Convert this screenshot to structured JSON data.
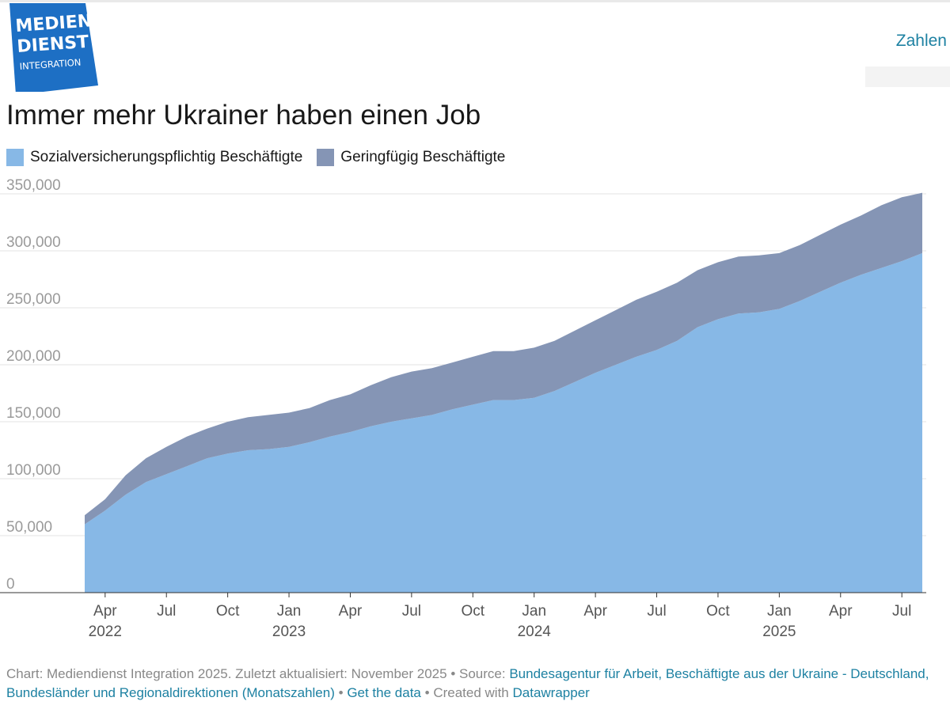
{
  "logo": {
    "line1": "MEDIEN",
    "line2": "DIENST",
    "line3": "INTEGRATION",
    "color": "#1d6fc4"
  },
  "tab": {
    "label": "Zahlen"
  },
  "header": {
    "title": "Immer mehr Ukrainer haben einen Job"
  },
  "legend": {
    "items": [
      {
        "label": "Sozialversicherungspflichtig Beschäftigte",
        "color": "#87b8e6"
      },
      {
        "label": "Geringfügig Beschäftigte",
        "color": "#8595b5"
      }
    ]
  },
  "footer": {
    "credit": "Chart: Mediendienst Integration 2025. Zuletzt aktualisiert: November 2025",
    "source_prefix": "• Source:",
    "source_link": "Bundesagentur für Arbeit, Beschäftigte aus der Ukraine - Deutschland, Bundesländer und Regionaldirektionen (Monatszahlen)",
    "sep1": "•",
    "get_data": "Get the data",
    "sep2": "•",
    "created_with": "Created with",
    "datawrapper": "Datawrapper"
  },
  "chart_data": {
    "type": "area",
    "stacked": true,
    "ylim": [
      0,
      350000
    ],
    "yticks": [
      0,
      50000,
      100000,
      150000,
      200000,
      250000,
      300000,
      350000
    ],
    "ytick_labels": [
      "0",
      "50,000",
      "100,000",
      "150,000",
      "200,000",
      "250,000",
      "300,000",
      "350,000"
    ],
    "xticks": [
      {
        "month": "2022-04",
        "label": "Apr",
        "year": "2022"
      },
      {
        "month": "2022-07",
        "label": "Jul",
        "year": ""
      },
      {
        "month": "2022-10",
        "label": "Oct",
        "year": ""
      },
      {
        "month": "2023-01",
        "label": "Jan",
        "year": "2023"
      },
      {
        "month": "2023-04",
        "label": "Apr",
        "year": ""
      },
      {
        "month": "2023-07",
        "label": "Jul",
        "year": ""
      },
      {
        "month": "2023-10",
        "label": "Oct",
        "year": ""
      },
      {
        "month": "2024-01",
        "label": "Jan",
        "year": "2024"
      },
      {
        "month": "2024-04",
        "label": "Apr",
        "year": ""
      },
      {
        "month": "2024-07",
        "label": "Jul",
        "year": ""
      },
      {
        "month": "2024-10",
        "label": "Oct",
        "year": ""
      },
      {
        "month": "2025-01",
        "label": "Jan",
        "year": "2025"
      },
      {
        "month": "2025-04",
        "label": "Apr",
        "year": ""
      },
      {
        "month": "2025-07",
        "label": "Jul",
        "year": ""
      }
    ],
    "x": [
      "2022-03",
      "2022-04",
      "2022-05",
      "2022-06",
      "2022-07",
      "2022-08",
      "2022-09",
      "2022-10",
      "2022-11",
      "2022-12",
      "2023-01",
      "2023-02",
      "2023-03",
      "2023-04",
      "2023-05",
      "2023-06",
      "2023-07",
      "2023-08",
      "2023-09",
      "2023-10",
      "2023-11",
      "2023-12",
      "2024-01",
      "2024-02",
      "2024-03",
      "2024-04",
      "2024-05",
      "2024-06",
      "2024-07",
      "2024-08",
      "2024-09",
      "2024-10",
      "2024-11",
      "2024-12",
      "2025-01",
      "2025-02",
      "2025-03",
      "2025-04",
      "2025-05",
      "2025-06",
      "2025-07",
      "2025-08"
    ],
    "series": [
      {
        "name": "Sozialversicherungspflichtig Beschäftigte",
        "color": "#87b8e6",
        "values": [
          60000,
          72000,
          86000,
          97000,
          104000,
          111000,
          118000,
          122000,
          125000,
          126000,
          128000,
          132000,
          137000,
          141000,
          146000,
          150000,
          153000,
          156000,
          161000,
          165000,
          169000,
          169000,
          171000,
          177000,
          185000,
          193000,
          200000,
          207000,
          213000,
          221000,
          233000,
          240000,
          245000,
          246000,
          249000,
          256000,
          264000,
          272000,
          279000,
          285000,
          291000,
          298000
        ]
      },
      {
        "name": "Geringfügig Beschäftigte",
        "color": "#8595b5",
        "values": [
          8000,
          10000,
          17000,
          21000,
          24000,
          26000,
          26000,
          28000,
          29000,
          30000,
          30000,
          30000,
          32000,
          33000,
          36000,
          39000,
          41000,
          41000,
          41000,
          42000,
          43000,
          43000,
          44000,
          44000,
          45000,
          46000,
          48000,
          50000,
          51000,
          51000,
          50000,
          50000,
          50000,
          50000,
          49000,
          49000,
          50000,
          51000,
          52000,
          55000,
          56000,
          53000
        ]
      }
    ]
  }
}
